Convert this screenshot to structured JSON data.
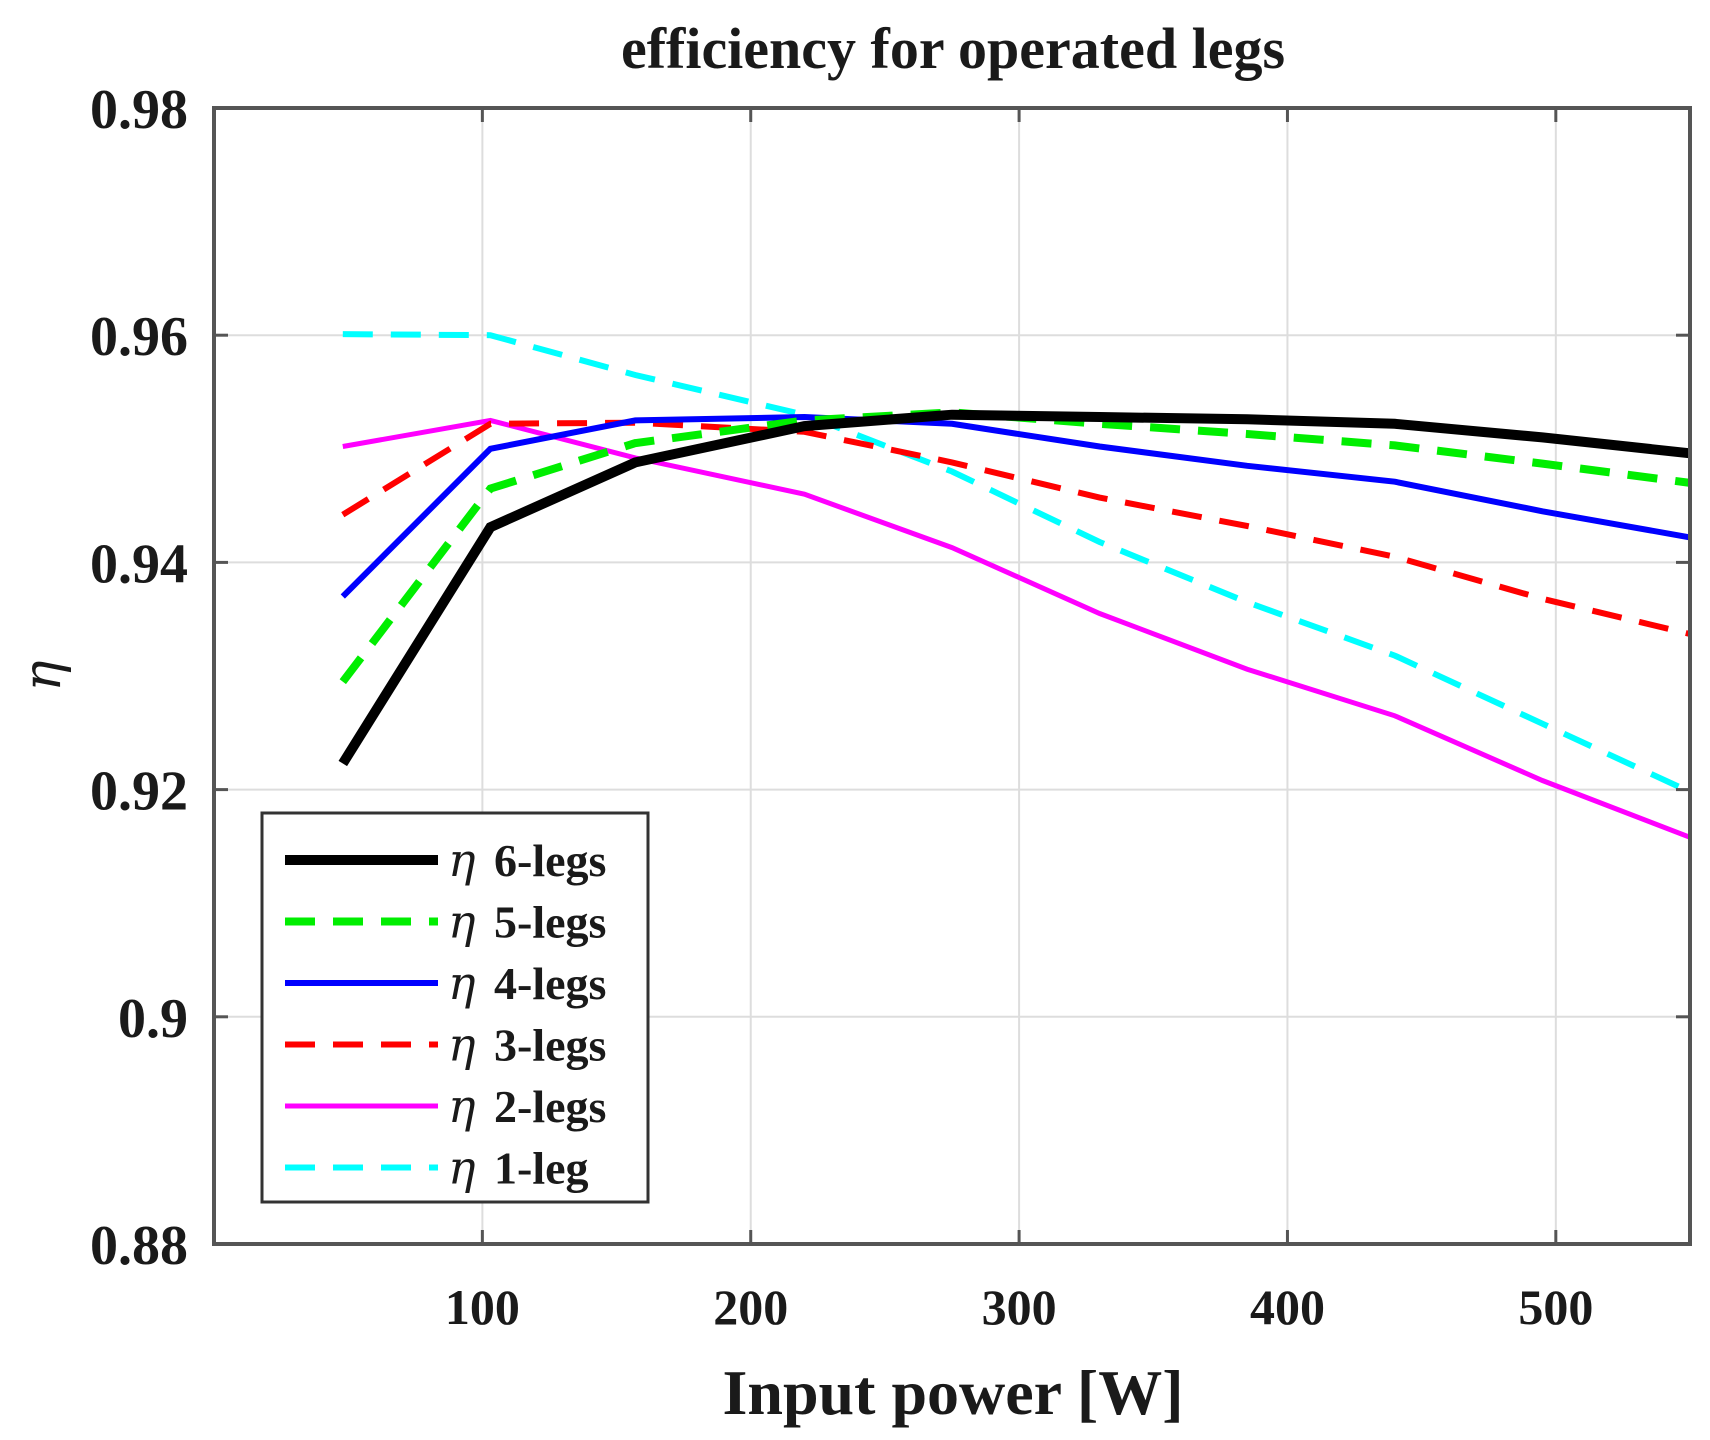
{
  "chart_data": {
    "type": "line",
    "title": "efficiency for operated legs",
    "xlabel": "Input power [W]",
    "ylabel": "η",
    "xlim": [
      0,
      550
    ],
    "ylim": [
      0.88,
      0.98
    ],
    "xticks": [
      100,
      200,
      300,
      400,
      500
    ],
    "xtick_labels": [
      "100",
      "200",
      "300",
      "400",
      "500"
    ],
    "yticks": [
      0.88,
      0.9,
      0.92,
      0.94,
      0.96,
      0.98
    ],
    "ytick_labels": [
      "0.88",
      "0.9",
      "0.92",
      "0.94",
      "0.96",
      "0.98"
    ],
    "grid": true,
    "legend_position": "bottom-left",
    "series": [
      {
        "name": "η 6-legs",
        "legend_symbol": "η",
        "legend_text": "6-legs",
        "color": "#000000",
        "style": "solid",
        "width": 10,
        "x": [
          48,
          103,
          157,
          220,
          275,
          330,
          385,
          440,
          495,
          550
        ],
        "y": [
          0.9223,
          0.9431,
          0.9488,
          0.952,
          0.953,
          0.9528,
          0.9526,
          0.9522,
          0.951,
          0.9496
        ]
      },
      {
        "name": "η 5-legs",
        "legend_symbol": "η",
        "legend_text": "5-legs",
        "color": "#00ee00",
        "style": "dashed",
        "width": 8,
        "x": [
          48,
          103,
          157,
          220,
          275,
          330,
          385,
          440,
          495,
          550
        ],
        "y": [
          0.9295,
          0.9465,
          0.9505,
          0.9525,
          0.9532,
          0.9522,
          0.9513,
          0.9503,
          0.9487,
          0.947
        ]
      },
      {
        "name": "η 4-legs",
        "legend_symbol": "η",
        "legend_text": "4-legs",
        "color": "#0000ff",
        "style": "solid",
        "width": 6,
        "x": [
          48,
          103,
          157,
          220,
          275,
          330,
          385,
          440,
          495,
          550
        ],
        "y": [
          0.937,
          0.95,
          0.9525,
          0.9528,
          0.9522,
          0.9502,
          0.9485,
          0.9471,
          0.9445,
          0.9422
        ]
      },
      {
        "name": "η 3-legs",
        "legend_symbol": "η",
        "legend_text": "3-legs",
        "color": "#ff0000",
        "style": "dashed",
        "width": 6,
        "x": [
          48,
          103,
          157,
          220,
          275,
          330,
          385,
          440,
          495,
          550
        ],
        "y": [
          0.9442,
          0.9522,
          0.9523,
          0.9515,
          0.9488,
          0.9457,
          0.9432,
          0.9405,
          0.9368,
          0.9337
        ]
      },
      {
        "name": "η 2-legs",
        "legend_symbol": "η",
        "legend_text": "2-legs",
        "color": "#ff00ff",
        "style": "solid",
        "width": 5,
        "x": [
          48,
          103,
          157,
          220,
          275,
          330,
          385,
          440,
          495,
          550
        ],
        "y": [
          0.9502,
          0.9525,
          0.9492,
          0.946,
          0.9413,
          0.9355,
          0.9306,
          0.9265,
          0.9208,
          0.9158
        ]
      },
      {
        "name": "η 1-leg",
        "legend_symbol": "η",
        "legend_text": "1-leg",
        "color": "#00ffff",
        "style": "dashed",
        "width": 6,
        "x": [
          48,
          103,
          157,
          220,
          275,
          330,
          385,
          440,
          495,
          550
        ],
        "y": [
          0.9601,
          0.96,
          0.9565,
          0.953,
          0.948,
          0.9418,
          0.9365,
          0.9318,
          0.9258,
          0.9198
        ]
      }
    ]
  }
}
